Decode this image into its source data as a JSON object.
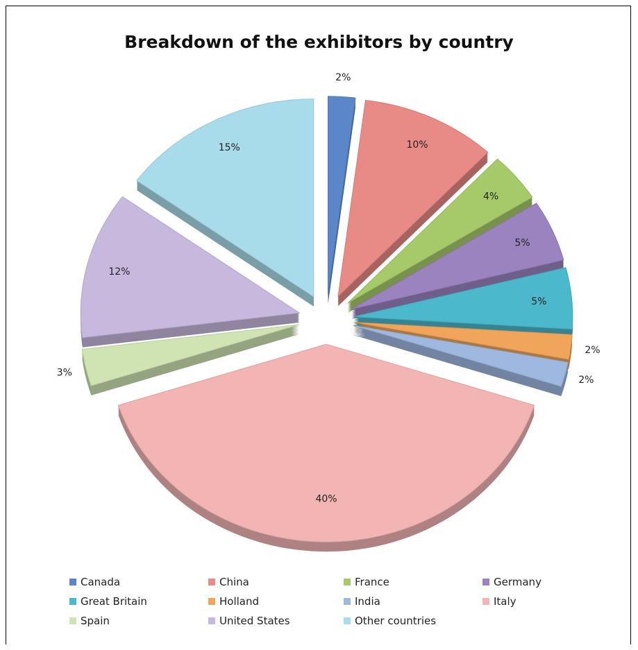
{
  "chart_data": {
    "type": "pie",
    "title": "Breakdown of the exhibitors by country",
    "exploded": true,
    "style": "3d",
    "legend_position": "bottom",
    "categories": [
      "Canada",
      "China",
      "France",
      "Germany",
      "Great Britain",
      "Holland",
      "India",
      "Italy",
      "Spain",
      "United States",
      "Other countries"
    ],
    "values": [
      2,
      10,
      4,
      5,
      5,
      2,
      2,
      40,
      3,
      12,
      15
    ],
    "labels": [
      "2%",
      "10%",
      "4%",
      "5%",
      "5%",
      "2%",
      "2%",
      "40%",
      "3%",
      "12%",
      "15%"
    ],
    "colors": [
      "#5b87c8",
      "#e88a86",
      "#a6c96a",
      "#9b83bf",
      "#4bb8cc",
      "#f0a55a",
      "#9fb8e0",
      "#f2b5b4",
      "#cfe4b2",
      "#c7b9dd",
      "#a9dcea"
    ]
  }
}
